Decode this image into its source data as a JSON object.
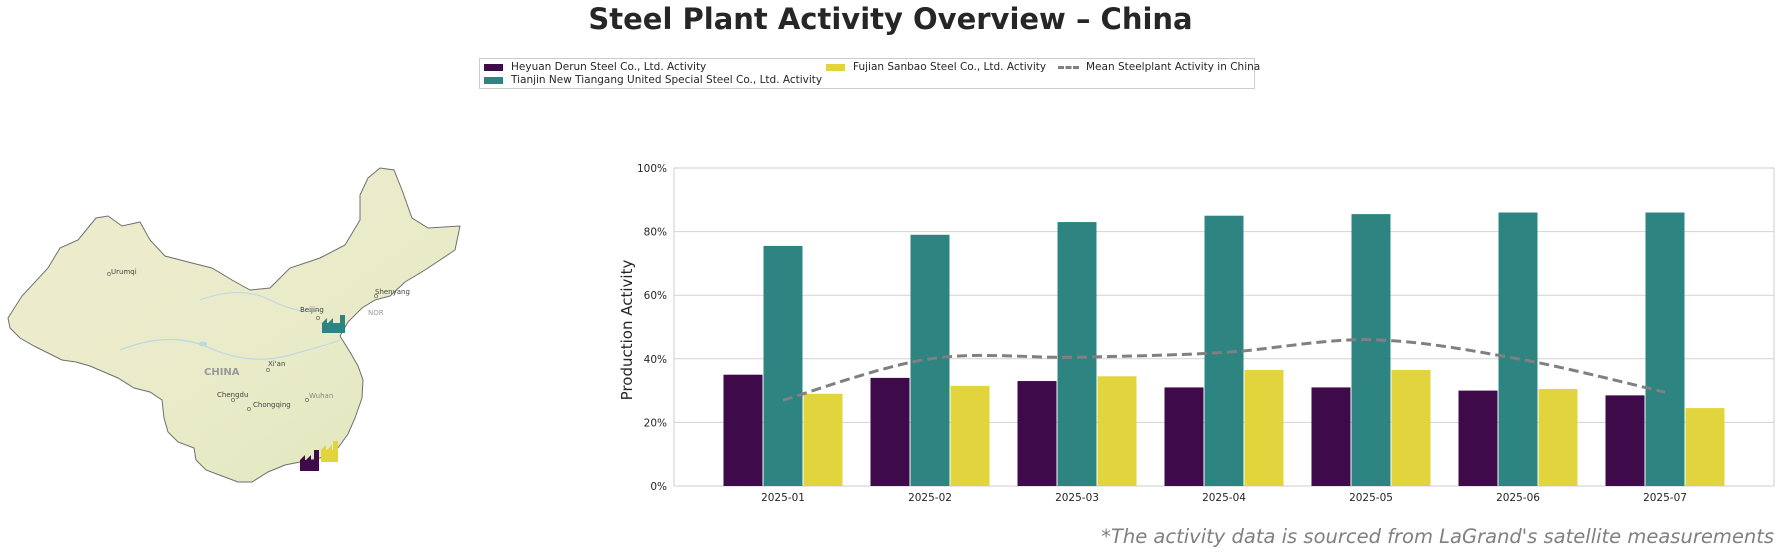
{
  "title": "Steel Plant Activity Overview – China",
  "footnote": "*The activity data is sourced from LaGrand's satellite measurements",
  "legend": {
    "heyuan": "Heyuan Derun Steel Co., Ltd. Activity",
    "tianjin": "Tianjin New Tiangang United Special Steel Co., Ltd. Activity",
    "fujian": "Fujian Sanbao Steel Co., Ltd. Activity",
    "mean": "Mean Steelplant Activity in China"
  },
  "colors": {
    "heyuan": "#3e0a4a",
    "tianjin": "#2d8480",
    "fujian": "#e2d43d",
    "mean": "#808080"
  },
  "map": {
    "labels": {
      "urumqi": "Urumqi",
      "beijing": "Beijing",
      "shenyang": "Shenyang",
      "xian": "Xi'an",
      "china": "CHINA",
      "chengdu": "Chengdu",
      "chongqing": "Chongqing",
      "wuhan": "Wuhan",
      "nor": "NOR"
    },
    "icons": {
      "tianjin": "factory-icon",
      "heyuan": "factory-icon",
      "fujian": "factory-icon"
    }
  },
  "chart_data": {
    "type": "bar",
    "categories": [
      "2025-01",
      "2025-02",
      "2025-03",
      "2025-04",
      "2025-05",
      "2025-06",
      "2025-07"
    ],
    "series": [
      {
        "name": "Heyuan Derun Steel Co., Ltd. Activity",
        "values": [
          35,
          34,
          33,
          31,
          31,
          30,
          28.5
        ]
      },
      {
        "name": "Tianjin New Tiangang United Special Steel Co., Ltd. Activity",
        "values": [
          75.5,
          79,
          83,
          85,
          85.5,
          86,
          86
        ]
      },
      {
        "name": "Fujian Sanbao Steel Co., Ltd. Activity",
        "values": [
          29,
          31.5,
          34.5,
          36.5,
          36.5,
          30.5,
          24.5
        ]
      }
    ],
    "line_series": {
      "name": "Mean Steelplant Activity in China",
      "values": [
        27,
        40,
        40.5,
        42,
        46,
        40,
        29.5
      ],
      "style": "dashed"
    },
    "ylabel": "Production Activity",
    "xlabel": "",
    "ylim": [
      0,
      100
    ],
    "yticks": [
      "0%",
      "20%",
      "40%",
      "60%",
      "80%",
      "100%"
    ],
    "grid": true,
    "legend_position": "top-center"
  }
}
